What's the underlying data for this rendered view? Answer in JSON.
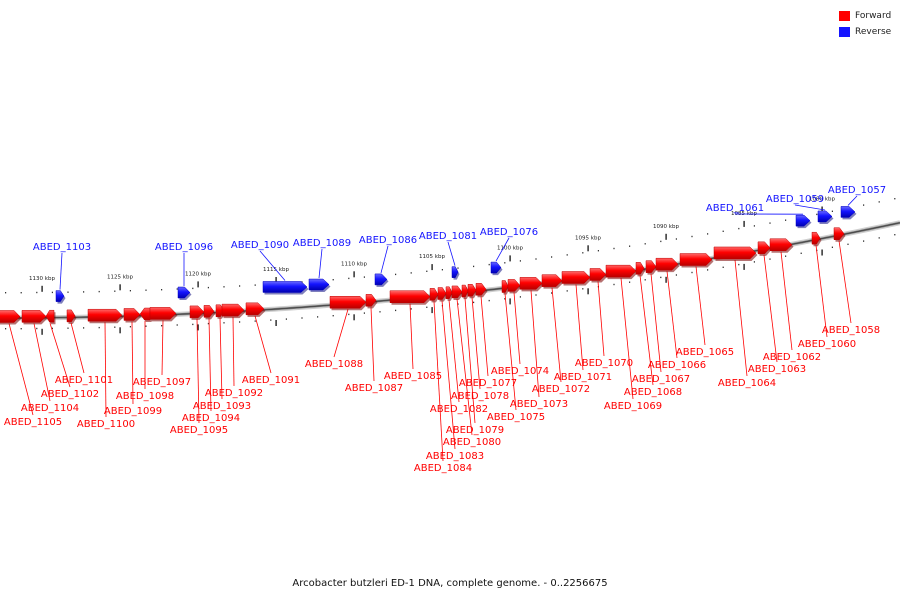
{
  "legend": {
    "forward_label": "Forward",
    "reverse_label": "Reverse",
    "forward_color": "#ff0000",
    "reverse_color": "#1414ff"
  },
  "caption": "Arcobacter butzleri ED-1 DNA, complete genome. - 0..2256675",
  "colors": {
    "forward": "#ff0000",
    "reverse": "#1414ff",
    "backbone": "#777777"
  },
  "ticks": [
    {
      "kbp": 1130,
      "label": "1130 kbp"
    },
    {
      "kbp": 1125,
      "label": "1125 kbp"
    },
    {
      "kbp": 1120,
      "label": "1120 kbp"
    },
    {
      "kbp": 1115,
      "label": "1115 kbp"
    },
    {
      "kbp": 1110,
      "label": "1110 kbp"
    },
    {
      "kbp": 1105,
      "label": "1105 kbp"
    },
    {
      "kbp": 1100,
      "label": "1100 kbp"
    },
    {
      "kbp": 1095,
      "label": "1095 kbp"
    },
    {
      "kbp": 1090,
      "label": "1090 kbp"
    },
    {
      "kbp": 1085,
      "label": "1085 kbp"
    },
    {
      "kbp": 1080,
      "label": "1080 kbp"
    }
  ],
  "forward_genes": [
    "ABED_1105",
    "ABED_1104",
    "ABED_1102",
    "ABED_1101",
    "ABED_1100",
    "ABED_1099",
    "ABED_1098",
    "ABED_1097",
    "ABED_1095",
    "ABED_1094",
    "ABED_1093",
    "ABED_1092",
    "ABED_1091",
    "ABED_1088",
    "ABED_1087",
    "ABED_1085",
    "ABED_1084",
    "ABED_1083",
    "ABED_1082",
    "ABED_1080",
    "ABED_1079",
    "ABED_1078",
    "ABED_1077",
    "ABED_1075",
    "ABED_1074",
    "ABED_1073",
    "ABED_1072",
    "ABED_1071",
    "ABED_1070",
    "ABED_1069",
    "ABED_1068",
    "ABED_1067",
    "ABED_1066",
    "ABED_1065",
    "ABED_1064",
    "ABED_1063",
    "ABED_1062",
    "ABED_1060",
    "ABED_1058"
  ],
  "reverse_genes": [
    "ABED_1103",
    "ABED_1096",
    "ABED_1090",
    "ABED_1089",
    "ABED_1086",
    "ABED_1081",
    "ABED_1076",
    "ABED_1061",
    "ABED_1059",
    "ABED_1057"
  ]
}
